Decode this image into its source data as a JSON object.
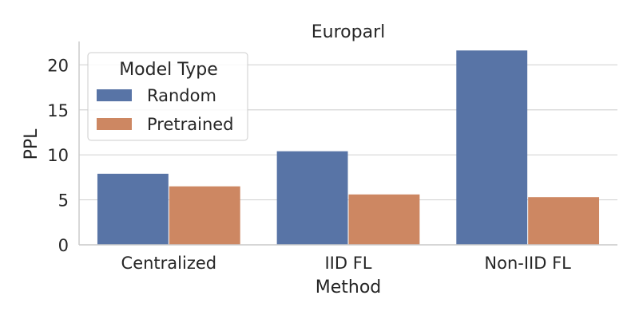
{
  "chart_data": {
    "type": "bar",
    "title": "Europarl",
    "xlabel": "Method",
    "ylabel": "PPL",
    "categories": [
      "Centralized",
      "IID FL",
      "Non-IID FL"
    ],
    "series": [
      {
        "name": "Random",
        "values": [
          7.9,
          10.4,
          21.6
        ]
      },
      {
        "name": "Pretrained",
        "values": [
          6.5,
          5.6,
          5.3
        ]
      }
    ],
    "ylim": [
      0,
      22.6
    ],
    "yticks": [
      0,
      5,
      10,
      15,
      20
    ],
    "grid": "horizontal",
    "legend": {
      "title": "Model Type",
      "placement": "top-left"
    },
    "colors": {
      "Random": "#5874a6",
      "Pretrained": "#cd8762",
      "grid": "#d5d5d5",
      "axis": "#cccccc"
    }
  }
}
